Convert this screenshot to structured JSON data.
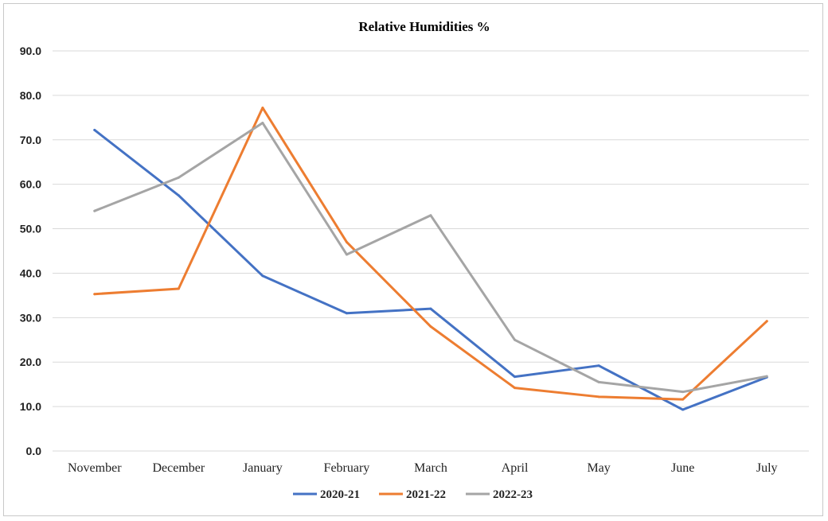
{
  "chart_data": {
    "type": "line",
    "title": "Relative Humidities %",
    "xlabel": "",
    "ylabel": "",
    "categories": [
      "November",
      "December",
      "January",
      "February",
      "March",
      "April",
      "May",
      "June",
      "July"
    ],
    "ylim": [
      0,
      90
    ],
    "yticks": [
      "0.0",
      "10.0",
      "20.0",
      "30.0",
      "40.0",
      "50.0",
      "60.0",
      "70.0",
      "80.0",
      "90.0"
    ],
    "grid": "horizontal",
    "legend_position": "bottom",
    "series": [
      {
        "name": "2020-21",
        "color": "#4472C4",
        "values": [
          72.2,
          57.5,
          39.4,
          31.0,
          32.0,
          16.7,
          19.2,
          9.3,
          16.6
        ]
      },
      {
        "name": "2021-22",
        "color": "#ED7D31",
        "values": [
          35.3,
          36.5,
          77.2,
          47.0,
          28.0,
          14.2,
          12.2,
          11.6,
          29.2
        ]
      },
      {
        "name": "2022-23",
        "color": "#A5A5A5",
        "values": [
          54.0,
          61.5,
          73.8,
          44.2,
          53.0,
          25.0,
          15.5,
          13.3,
          16.8
        ]
      }
    ]
  }
}
